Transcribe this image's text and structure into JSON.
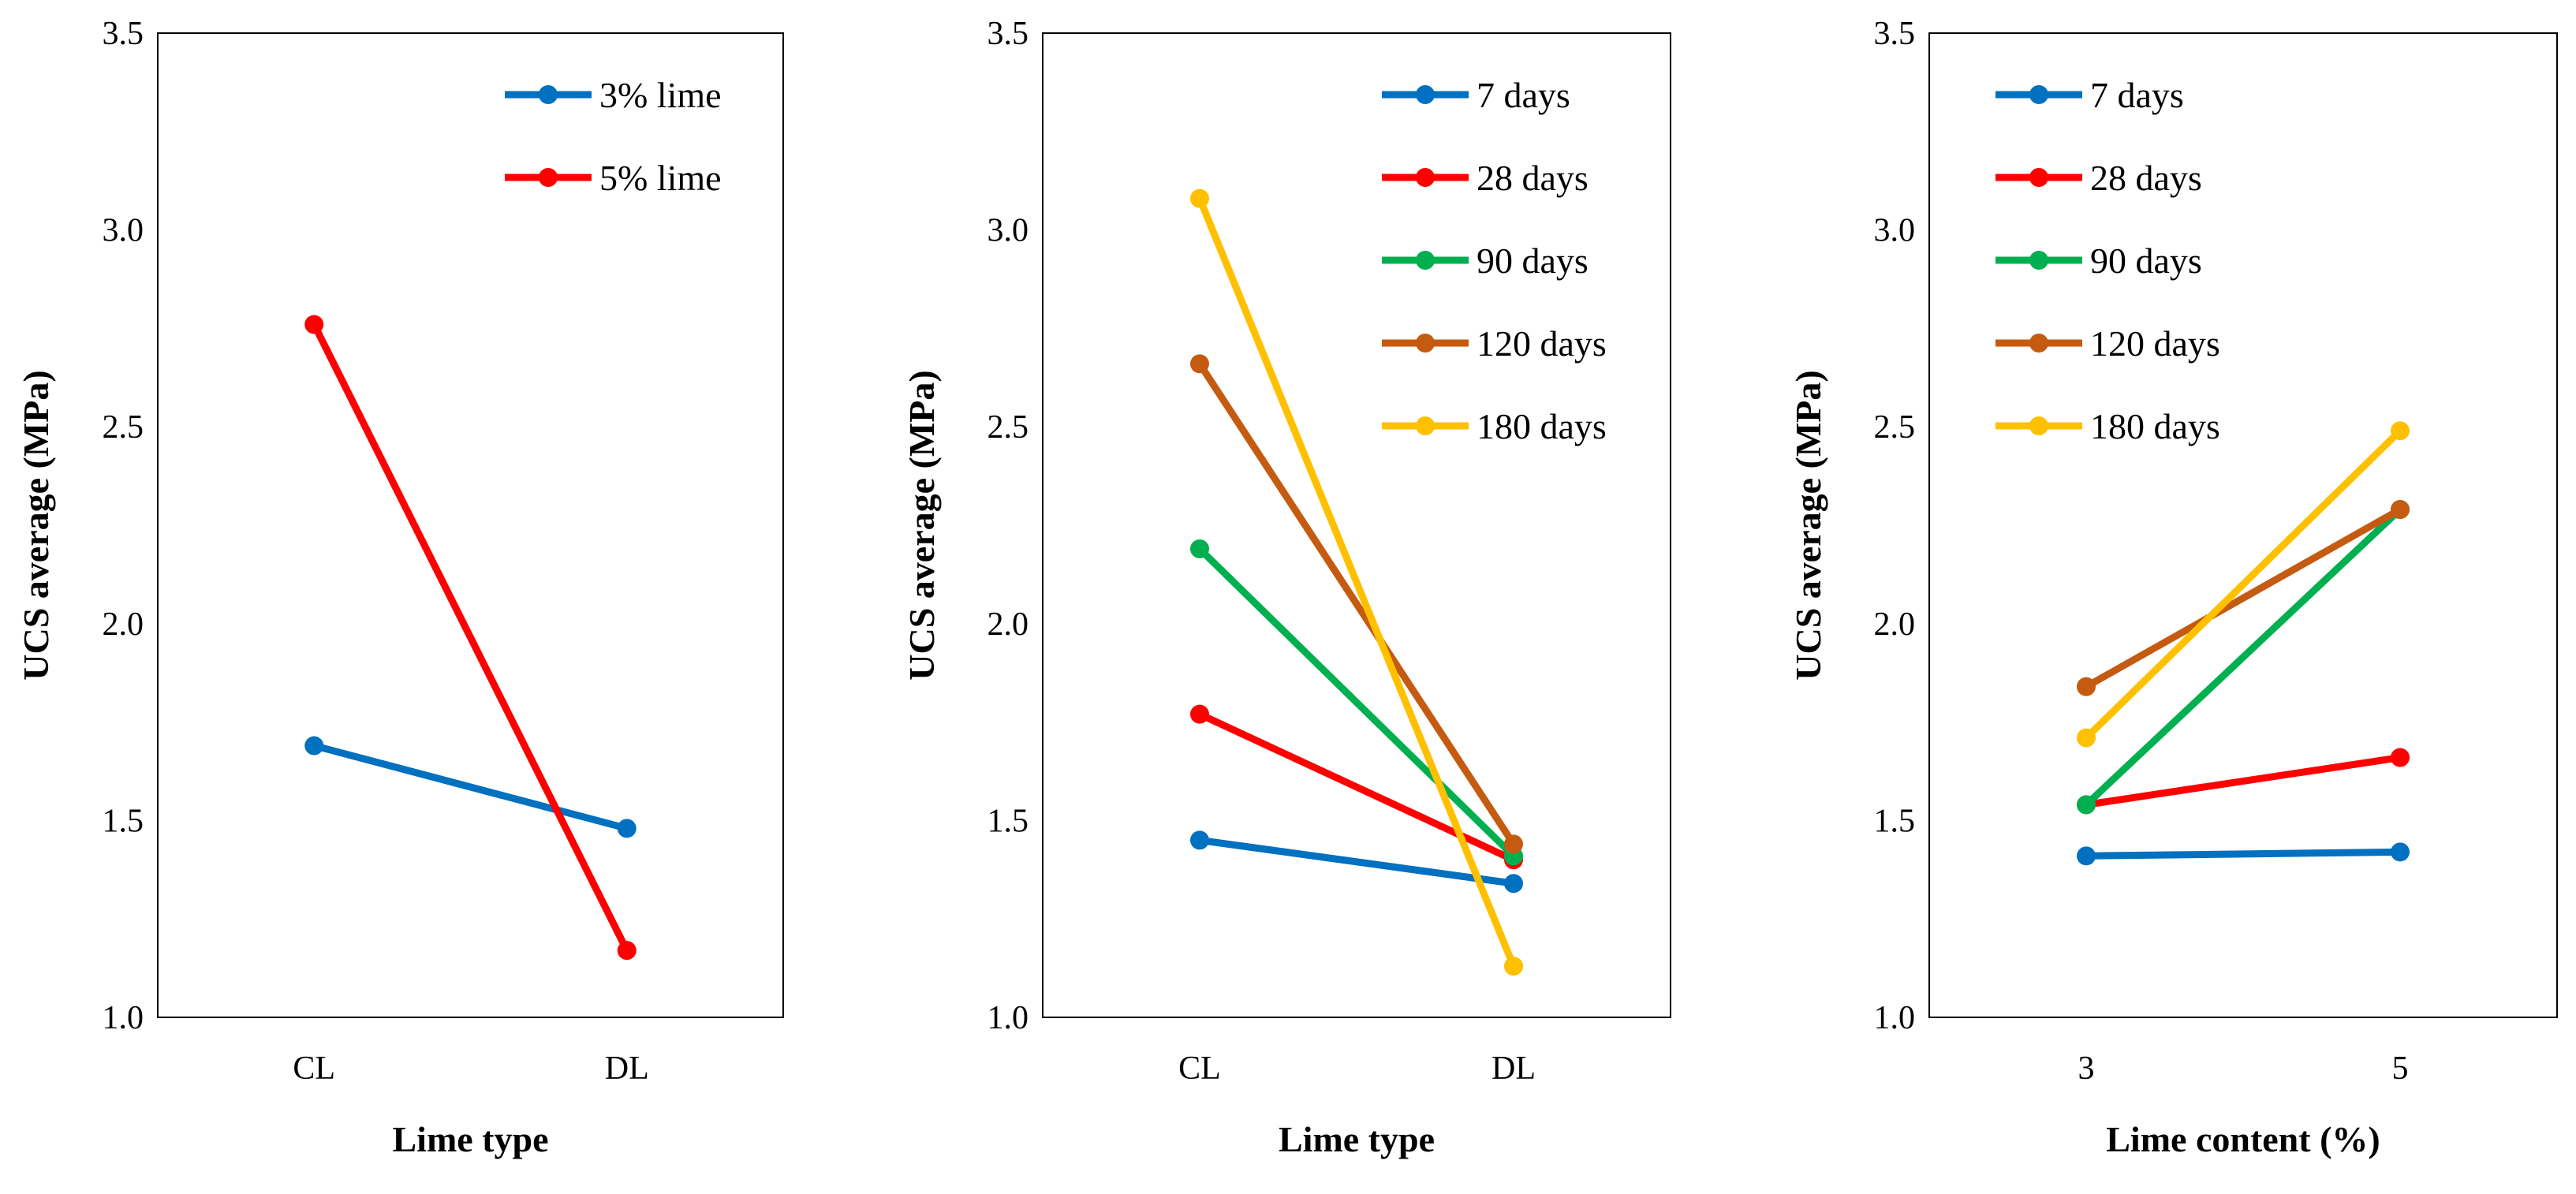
{
  "chart_data": [
    {
      "type": "line",
      "title": "",
      "xlabel": "Lime type",
      "ylabel": "UCS average (MPa)",
      "ylim": [
        1.0,
        3.5
      ],
      "yticks": [
        "1.0",
        "1.5",
        "2.0",
        "2.5",
        "3.0",
        "3.5"
      ],
      "categories": [
        "CL",
        "DL"
      ],
      "legend_position": "top-right",
      "series": [
        {
          "name": "3% lime",
          "color": "#0070C0",
          "values": [
            1.69,
            1.48
          ]
        },
        {
          "name": "5% lime",
          "color": "#FF0000",
          "values": [
            2.76,
            1.17
          ]
        }
      ]
    },
    {
      "type": "line",
      "title": "",
      "xlabel": "Lime type",
      "ylabel": "UCS average (MPa)",
      "ylim": [
        1.0,
        3.5
      ],
      "yticks": [
        "1.0",
        "1.5",
        "2.0",
        "2.5",
        "3.0",
        "3.5"
      ],
      "categories": [
        "CL",
        "DL"
      ],
      "legend_position": "top-right",
      "series": [
        {
          "name": "7 days",
          "color": "#0070C0",
          "values": [
            1.45,
            1.34
          ]
        },
        {
          "name": "28 days",
          "color": "#FF0000",
          "values": [
            1.77,
            1.4
          ]
        },
        {
          "name": "90 days",
          "color": "#00B050",
          "values": [
            2.19,
            1.41
          ]
        },
        {
          "name": "120 days",
          "color": "#C55A11",
          "values": [
            2.66,
            1.44
          ]
        },
        {
          "name": "180 days",
          "color": "#FFC000",
          "values": [
            3.08,
            1.13
          ]
        }
      ]
    },
    {
      "type": "line",
      "title": "",
      "xlabel": "Lime content (%)",
      "ylabel": "UCS average (MPa)",
      "ylim": [
        1.0,
        3.5
      ],
      "yticks": [
        "1.0",
        "1.5",
        "2.0",
        "2.5",
        "3.0",
        "3.5"
      ],
      "categories": [
        "3",
        "5"
      ],
      "legend_position": "top-left",
      "series": [
        {
          "name": "7 days",
          "color": "#0070C0",
          "values": [
            1.41,
            1.42
          ]
        },
        {
          "name": "28 days",
          "color": "#FF0000",
          "values": [
            1.54,
            1.66
          ]
        },
        {
          "name": "90 days",
          "color": "#00B050",
          "values": [
            1.54,
            2.29
          ]
        },
        {
          "name": "120 days",
          "color": "#C55A11",
          "values": [
            1.84,
            2.29
          ]
        },
        {
          "name": "180 days",
          "color": "#FFC000",
          "values": [
            1.71,
            2.49
          ]
        }
      ]
    }
  ]
}
